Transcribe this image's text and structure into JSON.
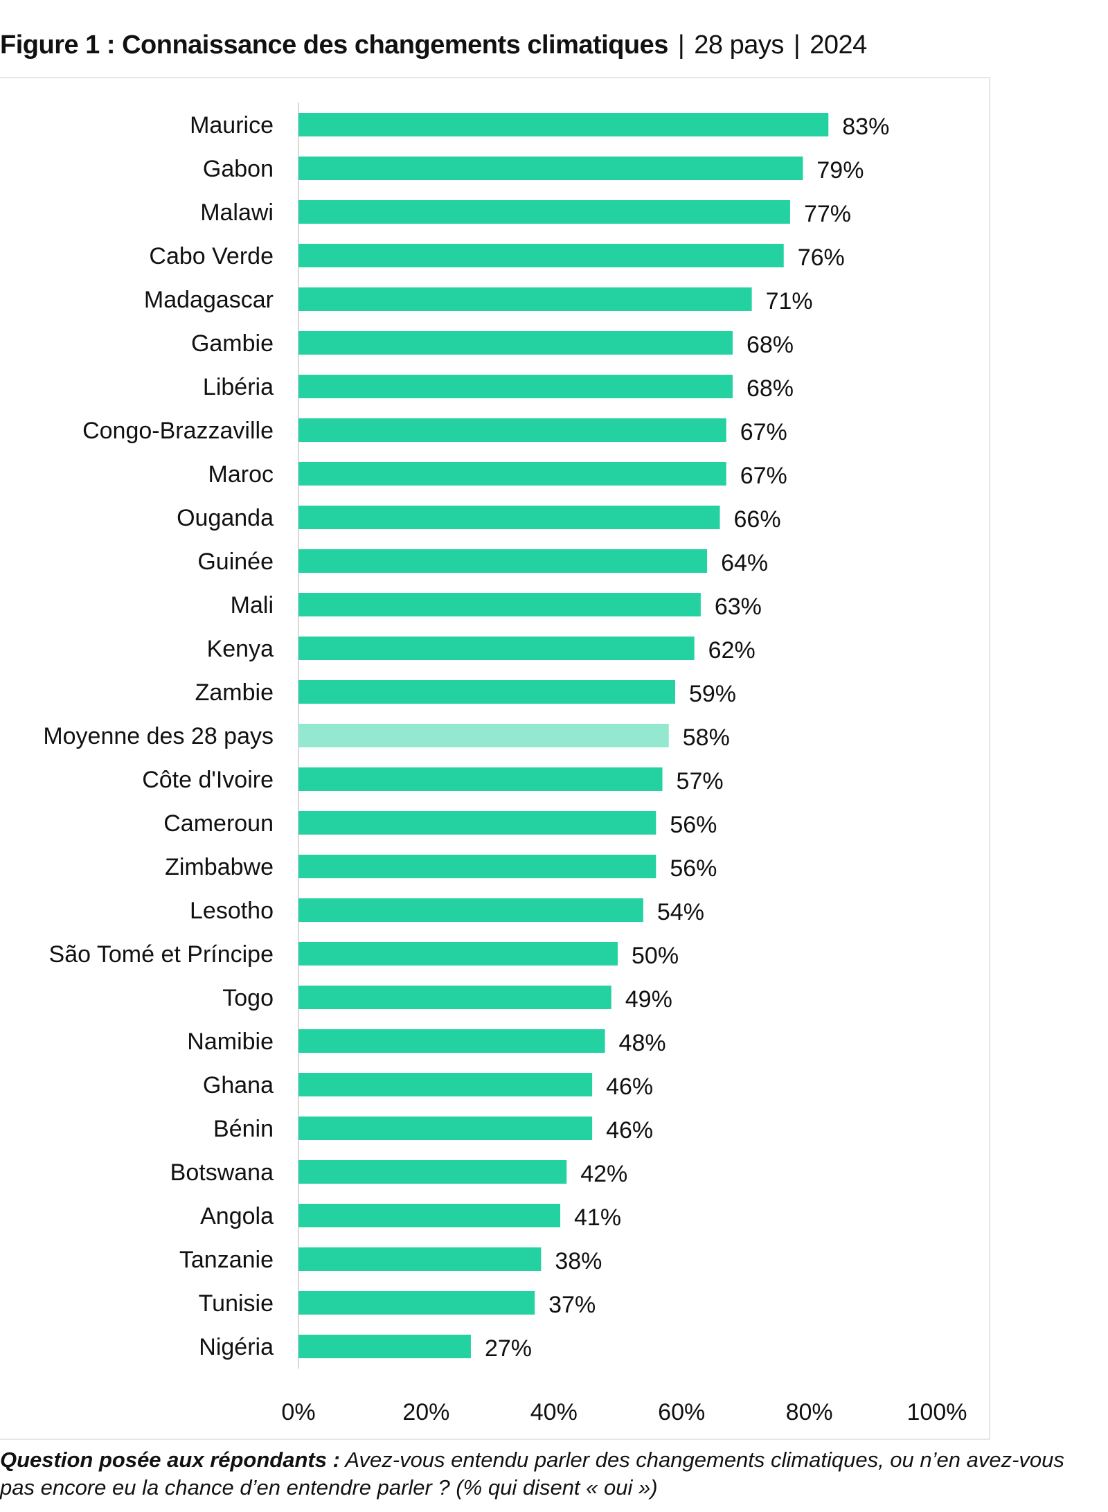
{
  "title": {
    "main": "Figure 1 : Connaissance des changements climatiques",
    "sep": "|",
    "countries": "28 pays",
    "year": "2024"
  },
  "footer": {
    "label": "Question posée aux répondants :",
    "text": " Avez-vous entendu parler des changements climatiques, ou n’en avez-vous pas encore eu la chance d’en entendre parler ? (% qui disent « oui »)"
  },
  "colors": {
    "bar": "#24d1a1",
    "average": "#93e8cf",
    "axis": "#d9d9d9"
  },
  "chart_data": {
    "type": "bar",
    "orientation": "horizontal",
    "title": "Connaissance des changements climatiques",
    "xlabel": "",
    "ylabel": "",
    "xlim": [
      0,
      100
    ],
    "x_ticks": [
      "0%",
      "20%",
      "40%",
      "60%",
      "80%",
      "100%"
    ],
    "grid": false,
    "categories": [
      "Maurice",
      "Gabon",
      "Malawi",
      "Cabo Verde",
      "Madagascar",
      "Gambie",
      "Libéria",
      "Congo-Brazzaville",
      "Maroc",
      "Ouganda",
      "Guinée",
      "Mali",
      "Kenya",
      "Zambie",
      "Moyenne des 28 pays",
      "Côte d'Ivoire",
      "Cameroun",
      "Zimbabwe",
      "Lesotho",
      "São Tomé et Príncipe",
      "Togo",
      "Namibie",
      "Ghana",
      "Bénin",
      "Botswana",
      "Angola",
      "Tanzanie",
      "Tunisie",
      "Nigéria"
    ],
    "values": [
      83,
      79,
      77,
      76,
      71,
      68,
      68,
      67,
      67,
      66,
      64,
      63,
      62,
      59,
      58,
      57,
      56,
      56,
      54,
      50,
      49,
      48,
      46,
      46,
      42,
      41,
      38,
      37,
      27
    ],
    "data_labels": [
      "83%",
      "79%",
      "77%",
      "76%",
      "71%",
      "68%",
      "68%",
      "67%",
      "67%",
      "66%",
      "64%",
      "63%",
      "62%",
      "59%",
      "58%",
      "57%",
      "56%",
      "56%",
      "54%",
      "50%",
      "49%",
      "48%",
      "46%",
      "46%",
      "42%",
      "41%",
      "38%",
      "37%",
      "27%"
    ],
    "highlight": "Moyenne des 28 pays"
  }
}
